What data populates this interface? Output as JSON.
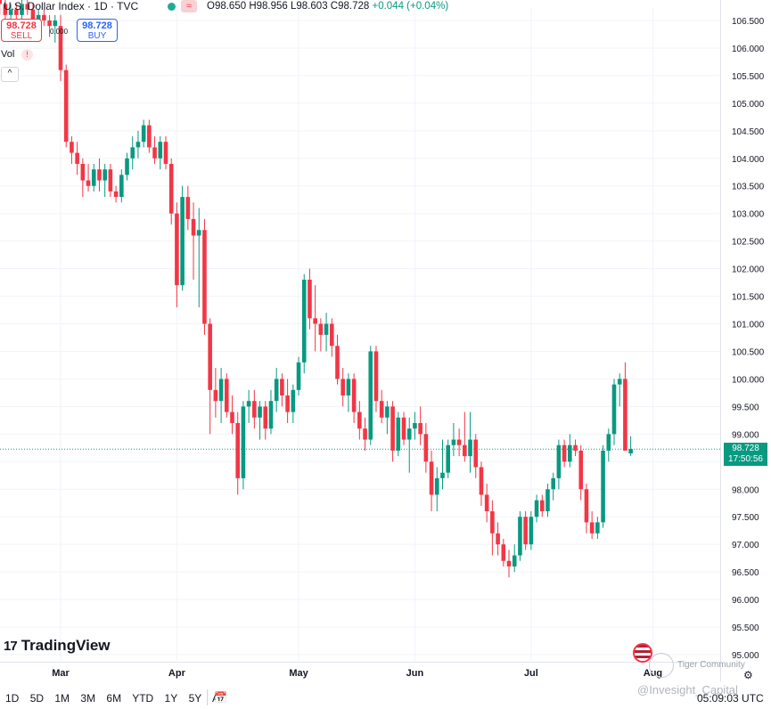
{
  "header": {
    "title": "U.S. Dollar Index · 1D · TVC",
    "ohlc_open": "O98.650",
    "ohlc_high": "H98.956",
    "ohlc_low": "L98.603",
    "ohlc_close": "C98.728",
    "change": "+0.044 (+0.04%)",
    "wave_icon": "≈"
  },
  "trade": {
    "sell_price": "98.728",
    "sell_label": "SELL",
    "buy_price": "98.728",
    "buy_label": "BUY",
    "spread": "0.000"
  },
  "volume": {
    "label": "Vol",
    "warning": "!"
  },
  "collapse_icon": "^",
  "price_label": {
    "value": "98.728",
    "countdown": "17:50:56"
  },
  "logo_text": "TradingView",
  "logo_mark": "17",
  "ranges": [
    "1D",
    "5D",
    "1M",
    "3M",
    "6M",
    "YTD",
    "1Y",
    "5Y",
    "All"
  ],
  "time": "05:09:03 UTC",
  "watermark": {
    "line1": "Tiger Community",
    "line2": "@Invesight_Capital"
  },
  "colors": {
    "up": "#089981",
    "down": "#f23645",
    "grid": "#f0f3fa",
    "axis_text": "#131722"
  },
  "chart_data": {
    "type": "candlestick",
    "y_ticks": [
      "106.500",
      "106.000",
      "105.500",
      "105.000",
      "104.500",
      "104.000",
      "103.500",
      "103.000",
      "102.500",
      "102.000",
      "101.500",
      "101.000",
      "100.500",
      "100.000",
      "99.500",
      "99.000",
      "98.500",
      "98.000",
      "97.500",
      "97.000",
      "96.500",
      "96.000",
      "95.500",
      "95.000"
    ],
    "ylim": [
      95.0,
      106.75
    ],
    "x_labels": [
      {
        "label": "Mar",
        "i": 0
      },
      {
        "label": "Apr",
        "i": 21
      },
      {
        "label": "May",
        "i": 43
      },
      {
        "label": "Jun",
        "i": 64
      },
      {
        "label": "Jul",
        "i": 85
      },
      {
        "label": "Aug",
        "i": 107
      }
    ],
    "first_index": -11,
    "current_price": 98.728,
    "candles": [
      [
        106.9,
        107.0,
        106.6,
        106.8
      ],
      [
        106.8,
        106.9,
        106.5,
        106.6
      ],
      [
        106.6,
        106.8,
        106.4,
        106.7
      ],
      [
        106.7,
        106.8,
        106.5,
        106.6
      ],
      [
        106.6,
        106.9,
        106.5,
        106.8
      ],
      [
        106.8,
        106.9,
        106.6,
        106.7
      ],
      [
        106.7,
        106.8,
        106.4,
        106.5
      ],
      [
        106.5,
        106.7,
        106.3,
        106.6
      ],
      [
        106.6,
        106.7,
        106.4,
        106.5
      ],
      [
        106.5,
        106.6,
        106.2,
        106.4
      ],
      [
        106.4,
        106.6,
        106.1,
        106.5
      ],
      [
        106.4,
        106.6,
        105.4,
        105.6
      ],
      [
        105.6,
        105.7,
        104.2,
        104.3
      ],
      [
        104.3,
        104.4,
        103.9,
        104.1
      ],
      [
        104.1,
        104.3,
        103.7,
        103.9
      ],
      [
        103.9,
        104.0,
        103.3,
        103.6
      ],
      [
        103.6,
        103.9,
        103.4,
        103.5
      ],
      [
        103.5,
        103.9,
        103.4,
        103.8
      ],
      [
        103.8,
        104.0,
        103.4,
        103.6
      ],
      [
        103.6,
        103.9,
        103.3,
        103.8
      ],
      [
        103.8,
        103.9,
        103.3,
        103.4
      ],
      [
        103.4,
        103.5,
        103.2,
        103.3
      ],
      [
        103.3,
        103.8,
        103.2,
        103.7
      ],
      [
        103.7,
        104.1,
        103.6,
        104.0
      ],
      [
        104.0,
        104.4,
        103.8,
        104.2
      ],
      [
        104.2,
        104.5,
        104.0,
        104.3
      ],
      [
        104.3,
        104.7,
        104.2,
        104.6
      ],
      [
        104.6,
        104.7,
        104.1,
        104.2
      ],
      [
        104.2,
        104.4,
        103.9,
        104.0
      ],
      [
        104.0,
        104.4,
        103.8,
        104.3
      ],
      [
        104.3,
        104.4,
        103.8,
        103.9
      ],
      [
        103.9,
        104.0,
        102.8,
        103.0
      ],
      [
        103.0,
        103.2,
        101.3,
        101.7
      ],
      [
        101.7,
        103.5,
        101.6,
        103.3
      ],
      [
        103.3,
        103.5,
        102.7,
        102.9
      ],
      [
        102.9,
        103.2,
        101.8,
        102.6
      ],
      [
        102.6,
        103.1,
        101.3,
        102.7
      ],
      [
        102.7,
        102.9,
        100.8,
        101.0
      ],
      [
        101.0,
        101.1,
        99.0,
        99.8
      ],
      [
        99.8,
        100.2,
        99.3,
        99.6
      ],
      [
        99.6,
        100.2,
        99.2,
        100.0
      ],
      [
        100.0,
        100.1,
        99.3,
        99.4
      ],
      [
        99.4,
        99.7,
        99.0,
        99.2
      ],
      [
        99.2,
        99.4,
        97.9,
        98.2
      ],
      [
        98.2,
        99.6,
        98.0,
        99.5
      ],
      [
        99.5,
        99.8,
        99.2,
        99.6
      ],
      [
        99.6,
        99.8,
        99.1,
        99.3
      ],
      [
        99.3,
        99.6,
        98.9,
        99.5
      ],
      [
        99.5,
        99.6,
        98.9,
        99.1
      ],
      [
        99.1,
        99.8,
        99.0,
        99.6
      ],
      [
        99.6,
        100.2,
        99.4,
        100.0
      ],
      [
        100.0,
        100.1,
        99.5,
        99.7
      ],
      [
        99.7,
        100.0,
        99.2,
        99.4
      ],
      [
        99.4,
        99.9,
        99.2,
        99.8
      ],
      [
        99.8,
        100.4,
        99.7,
        100.3
      ],
      [
        100.3,
        101.9,
        100.1,
        101.8
      ],
      [
        101.8,
        102.0,
        100.9,
        101.1
      ],
      [
        101.1,
        101.7,
        100.5,
        101.0
      ],
      [
        101.0,
        101.1,
        100.5,
        100.8
      ],
      [
        100.8,
        101.2,
        100.5,
        101.0
      ],
      [
        101.0,
        101.1,
        100.4,
        100.6
      ],
      [
        100.6,
        100.8,
        99.9,
        100.0
      ],
      [
        100.0,
        100.2,
        99.5,
        99.7
      ],
      [
        99.7,
        100.1,
        99.4,
        100.0
      ],
      [
        100.0,
        100.1,
        99.2,
        99.4
      ],
      [
        99.4,
        99.6,
        98.9,
        99.1
      ],
      [
        99.1,
        99.3,
        98.7,
        98.9
      ],
      [
        98.9,
        100.6,
        98.8,
        100.5
      ],
      [
        100.5,
        100.6,
        99.4,
        99.6
      ],
      [
        99.6,
        99.8,
        99.2,
        99.3
      ],
      [
        99.3,
        99.6,
        99.0,
        99.5
      ],
      [
        99.5,
        99.6,
        98.5,
        98.7
      ],
      [
        98.7,
        99.4,
        98.6,
        99.3
      ],
      [
        99.3,
        99.4,
        98.8,
        98.9
      ],
      [
        98.9,
        99.3,
        98.3,
        99.1
      ],
      [
        99.1,
        99.4,
        98.9,
        99.2
      ],
      [
        99.2,
        99.5,
        98.8,
        99.0
      ],
      [
        99.0,
        99.2,
        98.3,
        98.5
      ],
      [
        98.5,
        98.7,
        97.6,
        97.9
      ],
      [
        97.9,
        98.4,
        97.6,
        98.2
      ],
      [
        98.2,
        98.9,
        98.0,
        98.3
      ],
      [
        98.3,
        98.9,
        98.2,
        98.8
      ],
      [
        98.8,
        99.2,
        98.6,
        98.9
      ],
      [
        98.9,
        99.1,
        98.6,
        98.8
      ],
      [
        98.8,
        99.4,
        98.5,
        98.6
      ],
      [
        98.6,
        99.4,
        98.3,
        98.9
      ],
      [
        98.9,
        99.0,
        98.2,
        98.4
      ],
      [
        98.4,
        98.5,
        97.7,
        97.9
      ],
      [
        97.9,
        98.1,
        97.4,
        97.6
      ],
      [
        97.6,
        97.8,
        96.8,
        97.2
      ],
      [
        97.2,
        97.4,
        96.8,
        97.0
      ],
      [
        97.0,
        97.1,
        96.6,
        96.7
      ],
      [
        96.7,
        96.9,
        96.4,
        96.6
      ],
      [
        96.6,
        97.0,
        96.5,
        96.8
      ],
      [
        96.8,
        97.6,
        96.7,
        97.5
      ],
      [
        97.5,
        97.6,
        96.9,
        97.0
      ],
      [
        97.0,
        97.6,
        96.9,
        97.5
      ],
      [
        97.5,
        97.9,
        97.4,
        97.8
      ],
      [
        97.8,
        97.9,
        97.5,
        97.6
      ],
      [
        97.6,
        98.1,
        97.5,
        98.0
      ],
      [
        98.0,
        98.3,
        97.8,
        98.2
      ],
      [
        98.2,
        98.9,
        98.0,
        98.8
      ],
      [
        98.8,
        98.9,
        98.4,
        98.5
      ],
      [
        98.5,
        99.0,
        98.4,
        98.8
      ],
      [
        98.8,
        98.9,
        98.6,
        98.7
      ],
      [
        98.7,
        98.8,
        97.8,
        98.0
      ],
      [
        98.0,
        98.1,
        97.2,
        97.4
      ],
      [
        97.4,
        97.6,
        97.1,
        97.2
      ],
      [
        97.2,
        97.5,
        97.1,
        97.4
      ],
      [
        97.4,
        98.8,
        97.3,
        98.7
      ],
      [
        98.7,
        99.1,
        98.5,
        99.0
      ],
      [
        99.0,
        100.0,
        98.8,
        99.9
      ],
      [
        99.9,
        100.1,
        99.5,
        100.0
      ],
      [
        100.0,
        100.3,
        98.8,
        98.7
      ],
      [
        98.65,
        98.96,
        98.6,
        98.73
      ]
    ]
  }
}
